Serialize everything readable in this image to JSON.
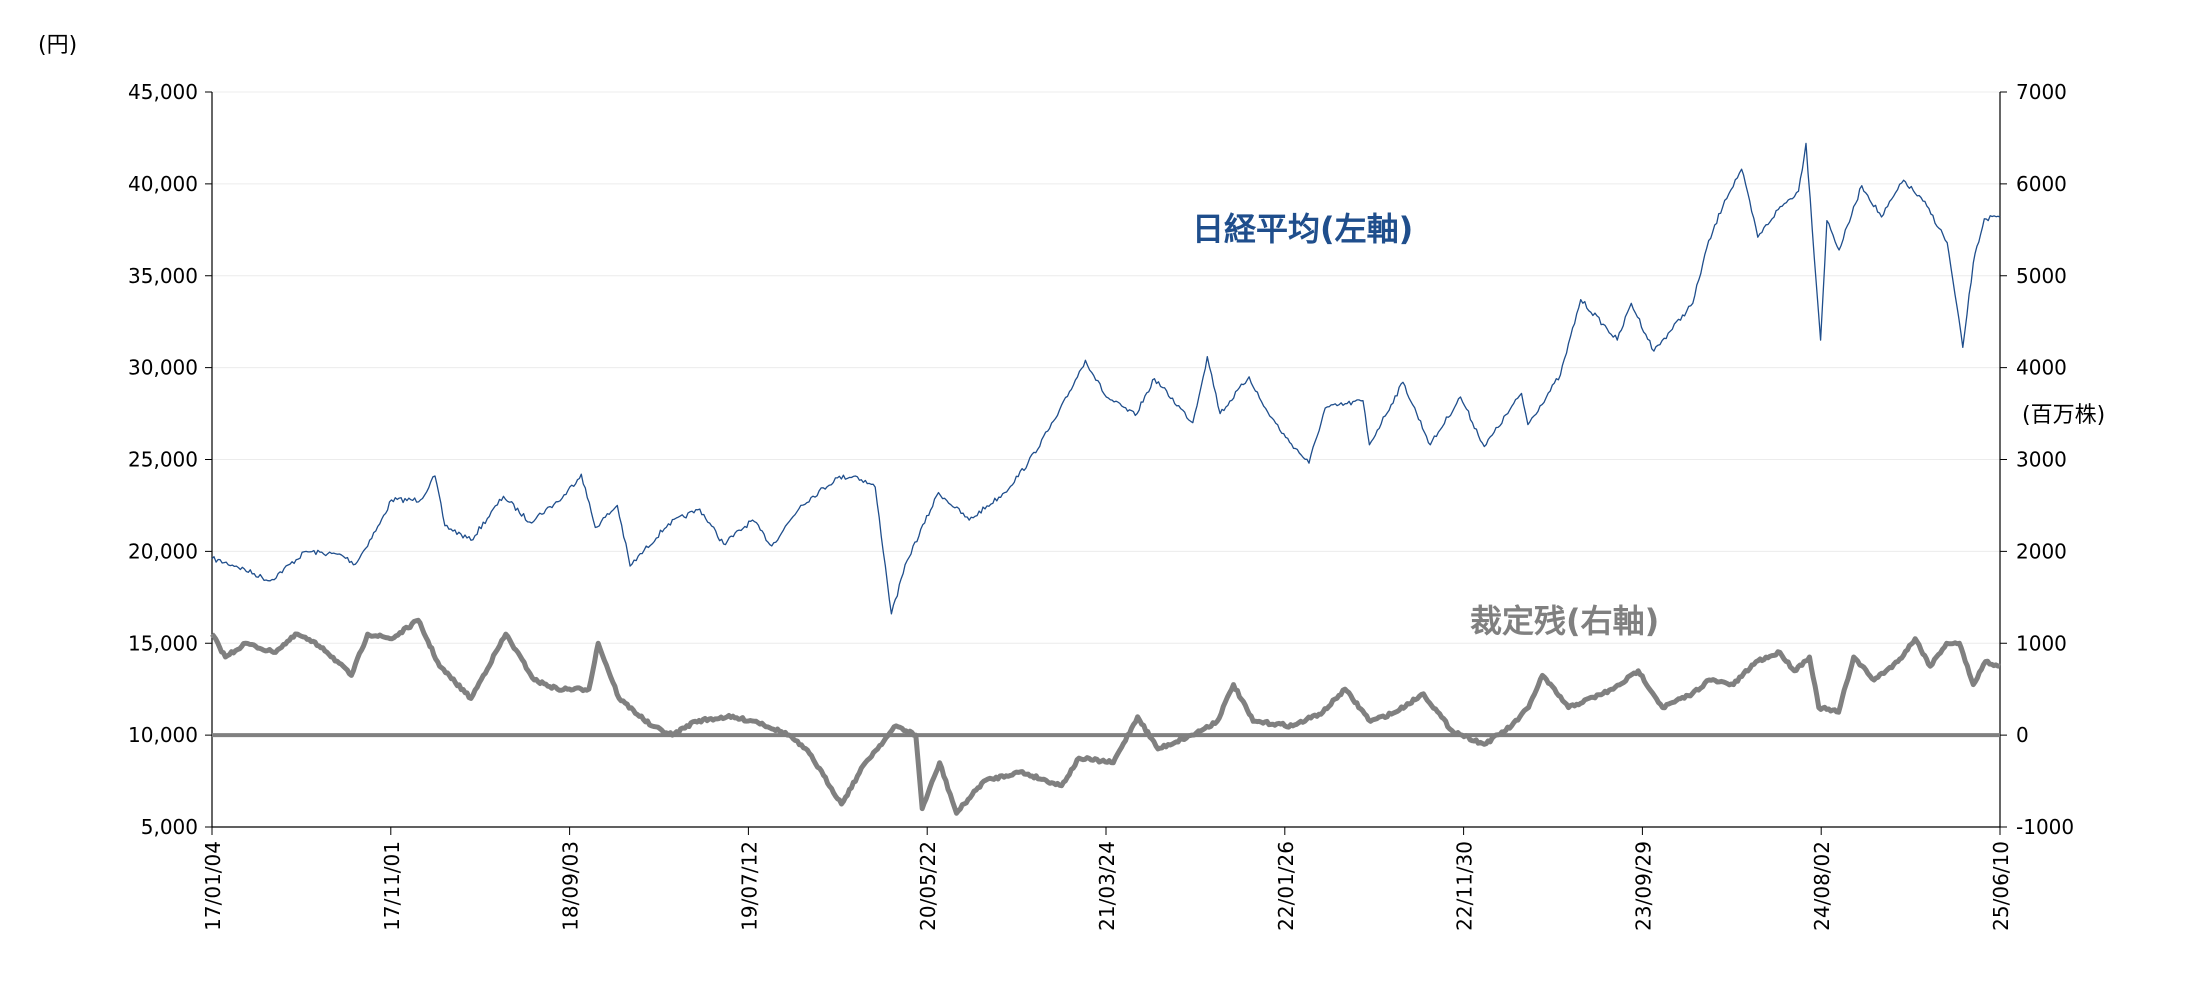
{
  "chart_data": {
    "type": "line",
    "left_axis": {
      "unit_label": "(円)",
      "ylim": [
        5000,
        45000
      ],
      "ticks": [
        5000,
        10000,
        15000,
        20000,
        25000,
        30000,
        35000,
        40000,
        45000
      ],
      "tick_labels": [
        "5,000",
        "10,000",
        "15,000",
        "20,000",
        "25,000",
        "30,000",
        "35,000",
        "40,000",
        "45,000"
      ]
    },
    "right_axis": {
      "unit_label": "(百万株)",
      "ylim": [
        -1000,
        7000
      ],
      "ticks": [
        -1000,
        0,
        1000,
        2000,
        3000,
        4000,
        5000,
        6000,
        7000
      ],
      "tick_labels": [
        "-1000",
        "0",
        "1000",
        "2000",
        "3000",
        "4000",
        "5000",
        "6000",
        "7000"
      ]
    },
    "x_axis": {
      "range": [
        "2017-01-04",
        "2025-06-10"
      ],
      "tick_labels": [
        "17/01/04",
        "17/11/01",
        "18/09/03",
        "19/07/12",
        "20/05/22",
        "21/03/24",
        "22/01/26",
        "22/11/30",
        "23/09/29",
        "24/08/02",
        "25/06/10"
      ]
    },
    "grid": true,
    "zero_line_right_axis": 0,
    "series": [
      {
        "name": "日経平均(左軸)",
        "axis": "left",
        "color": "#1f4e8c",
        "label_color": "#1f4e8c",
        "points": [
          [
            "2017-01-04",
            19600
          ],
          [
            "2017-02-15",
            19200
          ],
          [
            "2017-04-14",
            18400
          ],
          [
            "2017-06-15",
            20000
          ],
          [
            "2017-08-15",
            19800
          ],
          [
            "2017-09-08",
            19300
          ],
          [
            "2017-10-20",
            21500
          ],
          [
            "2017-11-09",
            22800
          ],
          [
            "2017-12-29",
            22800
          ],
          [
            "2018-01-23",
            24100
          ],
          [
            "2018-02-09",
            21400
          ],
          [
            "2018-03-26",
            20600
          ],
          [
            "2018-05-21",
            23000
          ],
          [
            "2018-07-05",
            21600
          ],
          [
            "2018-08-30",
            22900
          ],
          [
            "2018-10-02",
            24200
          ],
          [
            "2018-10-26",
            21300
          ],
          [
            "2018-12-03",
            22500
          ],
          [
            "2018-12-25",
            19200
          ],
          [
            "2019-03-01",
            21500
          ],
          [
            "2019-04-24",
            22300
          ],
          [
            "2019-06-04",
            20400
          ],
          [
            "2019-07-24",
            21700
          ],
          [
            "2019-08-26",
            20300
          ],
          [
            "2019-10-15",
            22500
          ],
          [
            "2019-12-17",
            24000
          ],
          [
            "2020-01-17",
            24100
          ],
          [
            "2020-02-20",
            23500
          ],
          [
            "2020-03-19",
            16600
          ],
          [
            "2020-04-15",
            19500
          ],
          [
            "2020-06-08",
            23200
          ],
          [
            "2020-07-31",
            21700
          ],
          [
            "2020-09-30",
            23200
          ],
          [
            "2020-11-09",
            24800
          ],
          [
            "2020-12-30",
            27400
          ],
          [
            "2021-02-16",
            30400
          ],
          [
            "2021-03-24",
            28400
          ],
          [
            "2021-05-13",
            27400
          ],
          [
            "2021-06-15",
            29400
          ],
          [
            "2021-08-20",
            27000
          ],
          [
            "2021-09-14",
            30600
          ],
          [
            "2021-10-06",
            27500
          ],
          [
            "2021-11-25",
            29500
          ],
          [
            "2021-12-20",
            27900
          ],
          [
            "2022-01-27",
            26200
          ],
          [
            "2022-03-08",
            24800
          ],
          [
            "2022-04-05",
            27800
          ],
          [
            "2022-06-09",
            28200
          ],
          [
            "2022-06-20",
            25800
          ],
          [
            "2022-08-17",
            29200
          ],
          [
            "2022-10-03",
            25800
          ],
          [
            "2022-11-24",
            28400
          ],
          [
            "2023-01-04",
            25700
          ],
          [
            "2023-03-09",
            28600
          ],
          [
            "2023-03-20",
            26900
          ],
          [
            "2023-05-15",
            29600
          ],
          [
            "2023-06-19",
            33700
          ],
          [
            "2023-08-21",
            31500
          ],
          [
            "2023-09-14",
            33500
          ],
          [
            "2023-10-23",
            30900
          ],
          [
            "2023-12-29",
            33500
          ],
          [
            "2024-01-22",
            36500
          ],
          [
            "2024-02-22",
            39100
          ],
          [
            "2024-03-22",
            40800
          ],
          [
            "2024-04-19",
            37100
          ],
          [
            "2024-05-24",
            38600
          ],
          [
            "2024-06-28",
            39600
          ],
          [
            "2024-07-11",
            42200
          ],
          [
            "2024-08-05",
            31500
          ],
          [
            "2024-08-16",
            38000
          ],
          [
            "2024-09-06",
            36400
          ],
          [
            "2024-10-15",
            39900
          ],
          [
            "2024-11-18",
            38200
          ],
          [
            "2024-12-26",
            40200
          ],
          [
            "2025-02-04",
            38800
          ],
          [
            "2025-03-11",
            36800
          ],
          [
            "2025-04-07",
            31100
          ],
          [
            "2025-04-25",
            35700
          ],
          [
            "2025-05-14",
            38100
          ],
          [
            "2025-06-10",
            38200
          ]
        ]
      },
      {
        "name": "裁定残(右軸)",
        "axis": "right",
        "color": "#808080",
        "label_color": "#808080",
        "points": [
          [
            "2017-01-04",
            1100
          ],
          [
            "2017-01-27",
            850
          ],
          [
            "2017-03-03",
            1000
          ],
          [
            "2017-04-20",
            900
          ],
          [
            "2017-05-31",
            1100
          ],
          [
            "2017-07-14",
            950
          ],
          [
            "2017-09-01",
            650
          ],
          [
            "2017-09-29",
            1100
          ],
          [
            "2017-11-10",
            1050
          ],
          [
            "2017-12-25",
            1250
          ],
          [
            "2018-01-31",
            750
          ],
          [
            "2018-03-26",
            400
          ],
          [
            "2018-05-25",
            1100
          ],
          [
            "2018-07-13",
            600
          ],
          [
            "2018-08-22",
            500
          ],
          [
            "2018-10-15",
            500
          ],
          [
            "2018-10-31",
            1000
          ],
          [
            "2018-12-06",
            400
          ],
          [
            "2019-01-31",
            100
          ],
          [
            "2019-03-08",
            0
          ],
          [
            "2019-04-16",
            150
          ],
          [
            "2019-06-10",
            200
          ],
          [
            "2019-07-30",
            150
          ],
          [
            "2019-09-25",
            0
          ],
          [
            "2019-10-30",
            -200
          ],
          [
            "2019-12-24",
            -750
          ],
          [
            "2020-02-03",
            -300
          ],
          [
            "2020-03-27",
            100
          ],
          [
            "2020-04-30",
            0
          ],
          [
            "2020-05-11",
            -800
          ],
          [
            "2020-06-10",
            -300
          ],
          [
            "2020-07-09",
            -850
          ],
          [
            "2020-08-25",
            -500
          ],
          [
            "2020-10-27",
            -400
          ],
          [
            "2021-01-06",
            -550
          ],
          [
            "2021-02-05",
            -250
          ],
          [
            "2021-04-05",
            -300
          ],
          [
            "2021-05-17",
            200
          ],
          [
            "2021-06-21",
            -150
          ],
          [
            "2021-08-19",
            0
          ],
          [
            "2021-10-01",
            150
          ],
          [
            "2021-10-29",
            550
          ],
          [
            "2021-12-02",
            150
          ],
          [
            "2022-02-08",
            100
          ],
          [
            "2022-04-01",
            250
          ],
          [
            "2022-05-09",
            500
          ],
          [
            "2022-06-22",
            150
          ],
          [
            "2022-08-04",
            250
          ],
          [
            "2022-09-21",
            450
          ],
          [
            "2022-11-09",
            50
          ],
          [
            "2023-01-04",
            -100
          ],
          [
            "2023-02-20",
            100
          ],
          [
            "2023-03-21",
            300
          ],
          [
            "2023-04-14",
            650
          ],
          [
            "2023-05-29",
            300
          ],
          [
            "2023-08-14",
            500
          ],
          [
            "2023-09-26",
            700
          ],
          [
            "2023-11-07",
            300
          ],
          [
            "2023-12-28",
            450
          ],
          [
            "2024-01-26",
            600
          ],
          [
            "2024-03-08",
            550
          ],
          [
            "2024-04-16",
            800
          ],
          [
            "2024-05-27",
            900
          ],
          [
            "2024-06-21",
            700
          ],
          [
            "2024-07-17",
            850
          ],
          [
            "2024-08-02",
            300
          ],
          [
            "2024-09-05",
            250
          ],
          [
            "2024-10-01",
            850
          ],
          [
            "2024-11-05",
            600
          ],
          [
            "2024-12-16",
            800
          ],
          [
            "2025-01-15",
            1050
          ],
          [
            "2025-02-10",
            750
          ],
          [
            "2025-03-10",
            1000
          ],
          [
            "2025-04-01",
            1000
          ],
          [
            "2025-04-25",
            550
          ],
          [
            "2025-05-16",
            800
          ],
          [
            "2025-06-10",
            750
          ]
        ]
      }
    ]
  }
}
